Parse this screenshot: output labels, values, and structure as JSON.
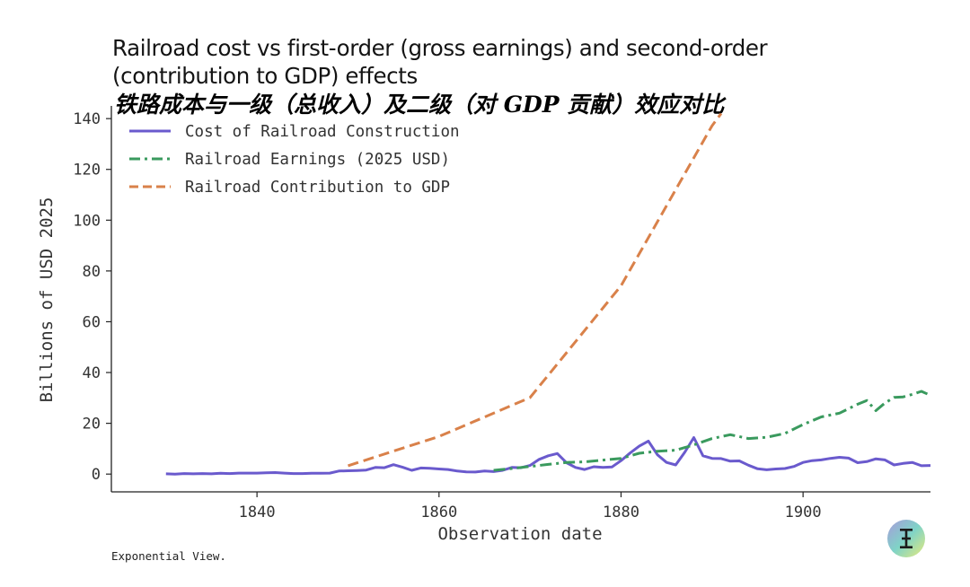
{
  "title": "Railroad cost vs first-order (gross earnings) and second-order (contribution to GDP) effects",
  "subtitle": "铁路成本与一级（总收入）及二级（对 GDP 贡献）效应对比",
  "footer": "Exponential View.",
  "logo": {
    "icon": "exponential-view-logo-icon",
    "colors": [
      "#a79bdb",
      "#7fd3c7",
      "#e7ea7c"
    ]
  },
  "chart_data": {
    "type": "line",
    "title": "Railroad cost vs first-order (gross earnings) and second-order (contribution to GDP) effects",
    "subtitle": "铁路成本与一级（总收入）及二级（对 GDP 贡献）效应对比",
    "xlabel": "Observation date",
    "ylabel": "Billions of USD 2025",
    "xlim": [
      1824,
      1914
    ],
    "ylim": [
      -7,
      145
    ],
    "xticks": [
      1840,
      1860,
      1880,
      1900
    ],
    "yticks": [
      0,
      20,
      40,
      60,
      80,
      100,
      120,
      140
    ],
    "grid": false,
    "legend_position": "top-left",
    "series": [
      {
        "name": "Cost of Railroad Construction",
        "color": "#6a5acd",
        "style": "solid",
        "x": [
          1830,
          1831,
          1832,
          1833,
          1834,
          1835,
          1836,
          1837,
          1838,
          1839,
          1840,
          1841,
          1842,
          1843,
          1844,
          1845,
          1846,
          1847,
          1848,
          1849,
          1850,
          1851,
          1852,
          1853,
          1854,
          1855,
          1856,
          1857,
          1858,
          1859,
          1860,
          1861,
          1862,
          1863,
          1864,
          1865,
          1866,
          1867,
          1868,
          1869,
          1870,
          1871,
          1872,
          1873,
          1874,
          1875,
          1876,
          1877,
          1878,
          1879,
          1880,
          1881,
          1882,
          1883,
          1884,
          1885,
          1886,
          1887,
          1888,
          1889,
          1890,
          1891,
          1892,
          1893,
          1894,
          1895,
          1896,
          1897,
          1898,
          1899,
          1900,
          1901,
          1902,
          1903,
          1904,
          1905,
          1906,
          1907,
          1908,
          1909,
          1910,
          1911,
          1912,
          1913,
          1914
        ],
        "y": [
          0.1,
          0.0,
          0.2,
          0.1,
          0.2,
          0.1,
          0.3,
          0.2,
          0.4,
          0.4,
          0.4,
          0.5,
          0.6,
          0.4,
          0.2,
          0.2,
          0.3,
          0.3,
          0.4,
          1.2,
          1.3,
          1.4,
          1.6,
          2.6,
          2.5,
          3.7,
          2.7,
          1.5,
          2.4,
          2.3,
          2.0,
          1.8,
          1.2,
          0.9,
          0.8,
          1.2,
          1.0,
          1.5,
          2.6,
          2.5,
          3.4,
          5.8,
          7.2,
          8.1,
          4.5,
          2.6,
          1.8,
          2.9,
          2.6,
          2.8,
          5.3,
          8.3,
          11.0,
          13.0,
          7.6,
          4.6,
          3.6,
          8.6,
          14.4,
          7.2,
          6.2,
          6.1,
          5.1,
          5.2,
          3.5,
          2.1,
          1.7,
          2.0,
          2.2,
          3.0,
          4.6,
          5.3,
          5.6,
          6.2,
          6.6,
          6.3,
          4.5,
          4.9,
          6.0,
          5.6,
          3.6,
          4.2,
          4.6,
          3.3,
          3.4
        ]
      },
      {
        "name": "Railroad Earnings (2025 USD)",
        "color": "#3a9a5e",
        "style": "dashdot",
        "x": [
          1866,
          1868,
          1870,
          1872,
          1874,
          1876,
          1878,
          1880,
          1882,
          1884,
          1886,
          1888,
          1890,
          1892,
          1894,
          1896,
          1898,
          1900,
          1902,
          1904,
          1906,
          1907,
          1908,
          1909,
          1910,
          1911,
          1912,
          1913,
          1914
        ],
        "y": [
          1.5,
          2.2,
          3.0,
          3.8,
          4.6,
          4.8,
          5.5,
          6.2,
          8.2,
          9.0,
          9.4,
          11.5,
          14.0,
          15.5,
          14.0,
          14.5,
          16.0,
          19.5,
          22.5,
          24.0,
          27.5,
          29.0,
          25.0,
          28.0,
          30.2,
          30.4,
          31.4,
          32.6,
          31.0
        ]
      },
      {
        "name": "Railroad Contribution to GDP",
        "color": "#d9814a",
        "style": "dashed",
        "x": [
          1850,
          1860,
          1870,
          1880,
          1890,
          1891
        ],
        "y": [
          3.3,
          14.8,
          30.1,
          74.2,
          137.2,
          142.0
        ]
      }
    ]
  }
}
